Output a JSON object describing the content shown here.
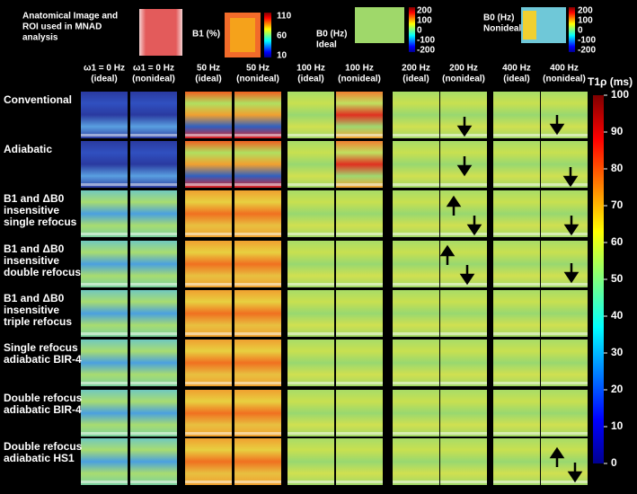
{
  "header": {
    "roi_caption": [
      "Anatomical Image and",
      "ROI used in MNAD",
      "analysis"
    ],
    "b1": {
      "label": [
        "B1 (%)"
      ],
      "ticks": [
        110,
        60,
        10
      ]
    },
    "b0_ideal": {
      "label": [
        "B0 (Hz)",
        "Ideal"
      ],
      "ticks": [
        200,
        100,
        0,
        -100,
        -200
      ]
    },
    "b0_nonideal": {
      "label": [
        "B0 (Hz)",
        "Nonideal"
      ],
      "ticks": [
        200,
        100,
        0,
        -100,
        -200
      ]
    }
  },
  "columns": [
    [
      "ω1 = 0 Hz",
      "(ideal)"
    ],
    [
      "ω1 = 0 Hz",
      "(nonideal)"
    ],
    [
      "50 Hz",
      "(ideal)"
    ],
    [
      "50 Hz",
      "(nonideal)"
    ],
    [
      "100 Hz",
      "(ideal)"
    ],
    [
      "100 Hz",
      "(nonideal)"
    ],
    [
      "200 Hz",
      "(ideal)"
    ],
    [
      "200 Hz",
      "(nonideal)"
    ],
    [
      "400 Hz",
      "(ideal)"
    ],
    [
      "400 Hz",
      "(nonideal)"
    ]
  ],
  "rows": [
    [
      "Conventional"
    ],
    [
      "Adiabatic"
    ],
    [
      "B1 and ΔB0",
      "insensitive",
      "single refocus"
    ],
    [
      "B1 and ΔB0",
      "insensitive",
      "double refocus"
    ],
    [
      "B1 and ΔB0",
      "insensitive",
      "triple refocus"
    ],
    [
      "Single refocus",
      "adiabatic BIR-4"
    ],
    [
      "Double refocus",
      "adiabatic BIR-4"
    ],
    [
      "Double refocus",
      "adiabatic HS1"
    ]
  ],
  "colorbar": {
    "label": "T1ρ (ms)",
    "ticks": [
      100,
      90,
      80,
      70,
      60,
      50,
      40,
      30,
      20,
      10,
      0
    ]
  }
}
